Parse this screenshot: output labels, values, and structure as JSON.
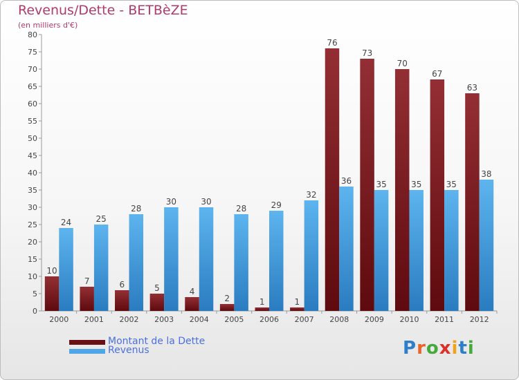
{
  "chart_data": {
    "type": "bar",
    "title": "Revenus/Dette - BETBèZE",
    "subtitle": "(en milliers d'€)",
    "categories": [
      "2000",
      "2001",
      "2002",
      "2003",
      "2004",
      "2005",
      "2006",
      "2007",
      "2008",
      "2009",
      "2010",
      "2011",
      "2012"
    ],
    "series": [
      {
        "name": "Montant de la Dette",
        "color": "#7a1a1e",
        "values": [
          10,
          7,
          6,
          5,
          4,
          2,
          1,
          1,
          76,
          73,
          70,
          67,
          63
        ]
      },
      {
        "name": "Revenus",
        "color": "#4ea6e6",
        "values": [
          24,
          25,
          28,
          30,
          30,
          28,
          29,
          32,
          36,
          35,
          35,
          35,
          38
        ]
      }
    ],
    "ylim": [
      0,
      80
    ],
    "yticks": [
      0,
      5,
      10,
      15,
      20,
      25,
      30,
      35,
      40,
      45,
      50,
      55,
      60,
      65,
      70,
      75,
      80
    ],
    "grid": false,
    "legend_position": "bottom-left"
  },
  "logo": {
    "letters": [
      "P",
      "r",
      "o",
      "x",
      "i",
      "t",
      "i"
    ],
    "colors": [
      "#2c7fc8",
      "#e8642a",
      "#46a93c",
      "#d8322a",
      "#f0a21c",
      "#2c7fc8",
      "#46a93c"
    ]
  }
}
